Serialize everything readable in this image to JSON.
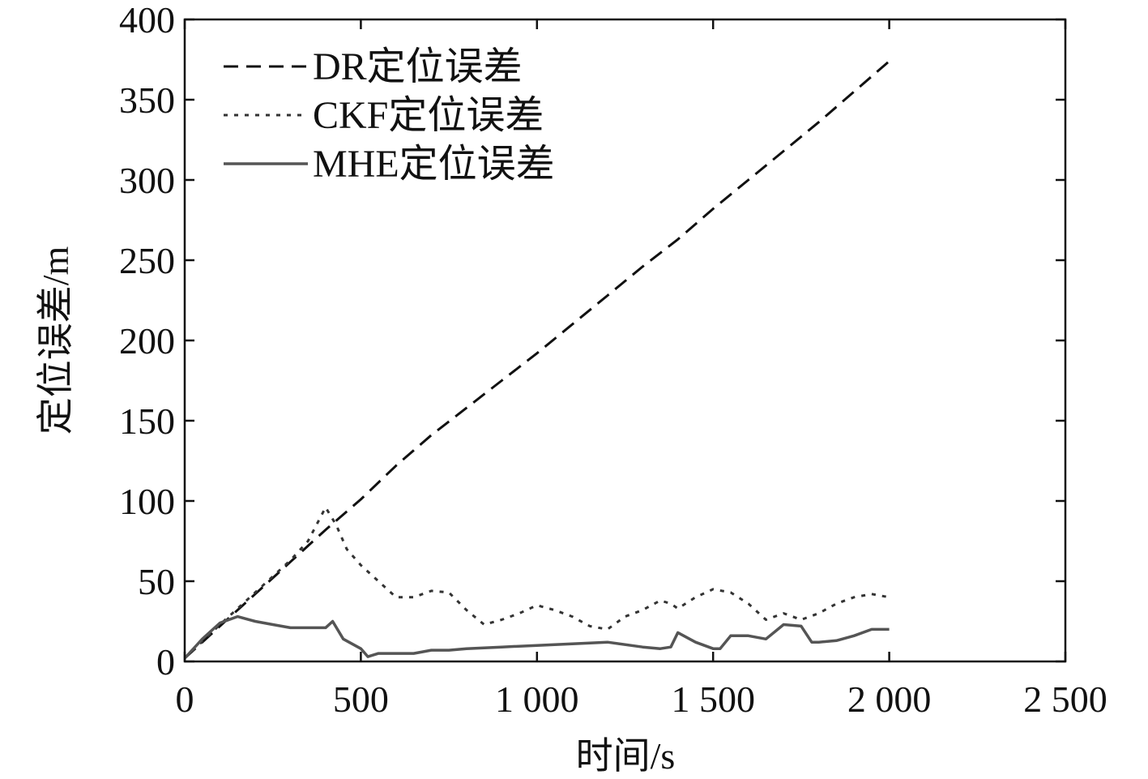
{
  "chart_data": {
    "type": "line",
    "xlabel": "时间/s",
    "ylabel": "定位误差/m",
    "xlim": [
      0,
      2500
    ],
    "ylim": [
      0,
      400
    ],
    "xticks": [
      0,
      500,
      1000,
      1500,
      2000,
      2500
    ],
    "xtick_labels": [
      "0",
      "500",
      "1 000",
      "1 500",
      "2 000",
      "2 500"
    ],
    "yticks": [
      0,
      50,
      100,
      150,
      200,
      250,
      300,
      350,
      400
    ],
    "ytick_labels": [
      "0",
      "50",
      "100",
      "150",
      "200",
      "250",
      "300",
      "350",
      "400"
    ],
    "grid": false,
    "legend_position": "top-left",
    "series": [
      {
        "name": "DR定位误差",
        "color": "#111111",
        "dash": "dashed",
        "x": [
          0,
          100,
          200,
          300,
          400,
          500,
          600,
          700,
          800,
          900,
          1000,
          1100,
          1200,
          1300,
          1400,
          1500,
          1600,
          1700,
          1800,
          1900,
          2000
        ],
        "y": [
          2,
          22,
          42,
          62,
          82,
          101,
          122,
          141,
          158,
          175,
          192,
          210,
          228,
          246,
          263,
          282,
          300,
          318,
          336,
          355,
          374
        ]
      },
      {
        "name": "CKF定位误差",
        "color": "#333333",
        "dash": "dotted",
        "x": [
          0,
          100,
          200,
          300,
          350,
          400,
          430,
          460,
          500,
          550,
          600,
          650,
          700,
          750,
          800,
          850,
          900,
          950,
          1000,
          1050,
          1100,
          1150,
          1200,
          1250,
          1300,
          1350,
          1380,
          1400,
          1450,
          1500,
          1550,
          1600,
          1650,
          1700,
          1750,
          1800,
          1850,
          1900,
          1950,
          2000
        ],
        "y": [
          2,
          23,
          43,
          63,
          75,
          96,
          85,
          70,
          60,
          50,
          40,
          40,
          44,
          43,
          32,
          23,
          26,
          30,
          35,
          32,
          28,
          22,
          20,
          28,
          32,
          38,
          36,
          33,
          40,
          45,
          43,
          36,
          26,
          30,
          26,
          30,
          36,
          40,
          42,
          40
        ]
      },
      {
        "name": "MHE定位误差",
        "color": "#555555",
        "dash": "solid",
        "x": [
          0,
          50,
          100,
          150,
          200,
          250,
          300,
          350,
          400,
          420,
          450,
          500,
          520,
          550,
          600,
          650,
          700,
          750,
          800,
          900,
          1000,
          1100,
          1200,
          1300,
          1350,
          1380,
          1400,
          1450,
          1500,
          1520,
          1550,
          1600,
          1650,
          1700,
          1750,
          1780,
          1800,
          1850,
          1900,
          1950,
          2000
        ],
        "y": [
          2,
          14,
          24,
          28,
          25,
          23,
          21,
          21,
          21,
          25,
          14,
          8,
          3,
          5,
          5,
          5,
          7,
          7,
          8,
          9,
          10,
          11,
          12,
          9,
          8,
          9,
          18,
          12,
          8,
          8,
          16,
          16,
          14,
          23,
          22,
          12,
          12,
          13,
          16,
          20,
          20
        ]
      }
    ]
  }
}
